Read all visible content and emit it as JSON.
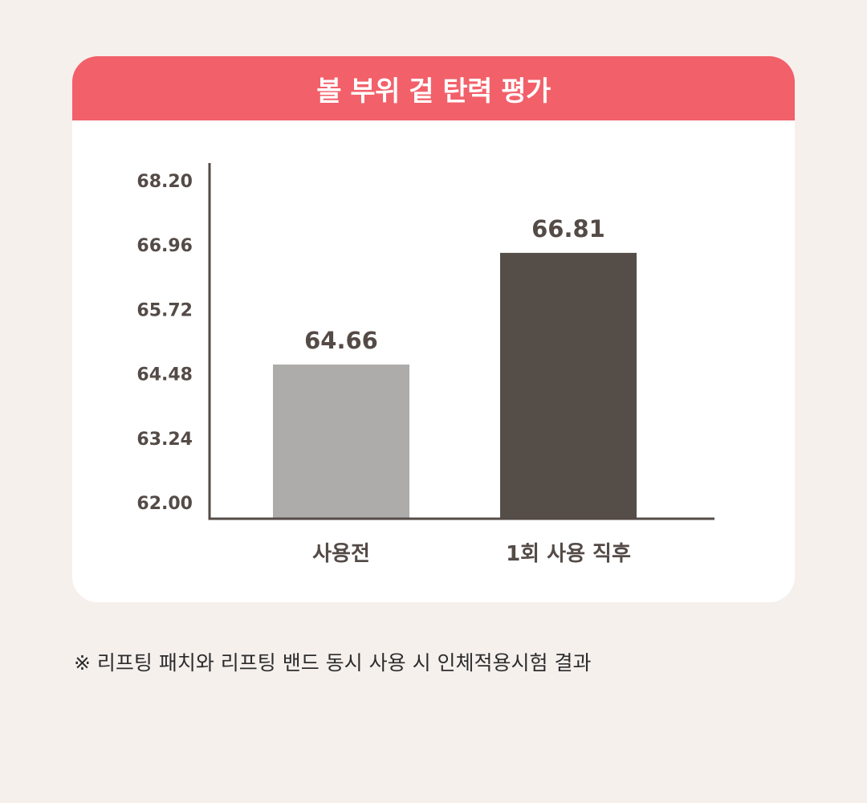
{
  "title": "볼 부위 겉 탄력 평가",
  "footnote": "※  리프팅 패치와 리프팅 밴드 동시 사용 시 인체적용시험 결과",
  "colors": {
    "background": "#f6f0ed",
    "header": "#f2606a",
    "bar_before": "#adacaa",
    "bar_after": "#544d48",
    "text": "#544b47"
  },
  "chart_data": {
    "type": "bar",
    "categories": [
      "사용전",
      "1회 사용 직후"
    ],
    "values": [
      64.66,
      66.81
    ],
    "value_labels": [
      "64.66",
      "66.81"
    ],
    "ylim": [
      62.0,
      68.2
    ],
    "yticks": [
      "68.20",
      "66.96",
      "65.72",
      "64.48",
      "63.24",
      "62.00"
    ],
    "xlabel": "",
    "ylabel": "",
    "grid": false,
    "bar_colors": [
      "#adacaa",
      "#544d48"
    ]
  }
}
